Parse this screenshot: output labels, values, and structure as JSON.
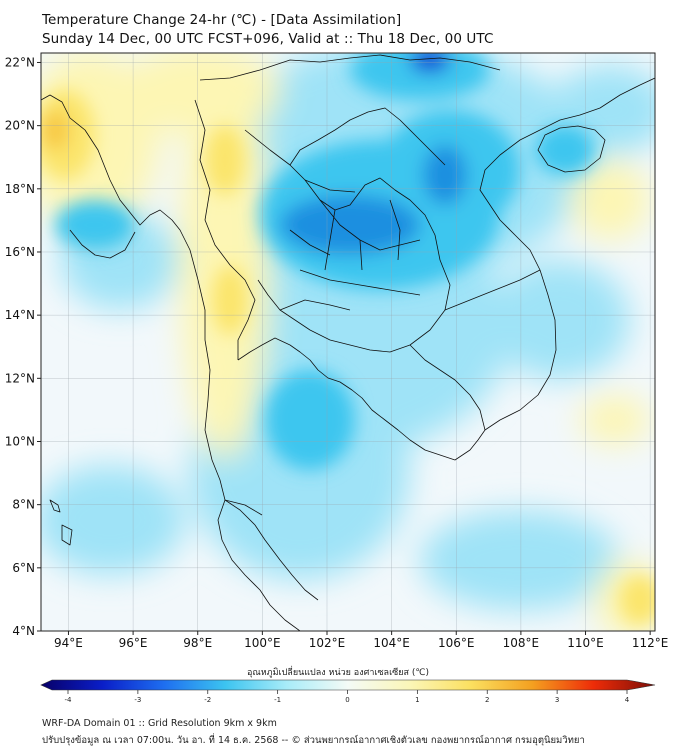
{
  "header": {
    "title_line1": "Temperature Change 24-hr (℃) - [Data Assimilation]",
    "title_line2": "Sunday 14 Dec, 00 UTC FCST+096, Valid at :: Thu 18 Dec, 00 UTC"
  },
  "map": {
    "lat_labels": [
      "22°N",
      "20°N",
      "18°N",
      "16°N",
      "14°N",
      "12°N",
      "10°N",
      "8°N",
      "6°N",
      "4°N"
    ],
    "lon_labels": [
      "94°E",
      "96°E",
      "98°E",
      "100°E",
      "102°E",
      "104°E",
      "106°E",
      "108°E",
      "110°E",
      "112°E"
    ],
    "lat_values": [
      22,
      20,
      18,
      16,
      14,
      12,
      10,
      8,
      6,
      4
    ],
    "lon_values": [
      94,
      96,
      98,
      100,
      102,
      104,
      106,
      108,
      110,
      112
    ],
    "colors": {
      "neutral": "#f2f8fb",
      "cool_light": "#9fe3f7",
      "cool": "#3ec6ef",
      "cool_strong": "#1f8fe0",
      "cool_deep": "#0b3fd6",
      "warm_light": "#fdf6b4",
      "warm": "#fbe56c",
      "warm_strong": "#f7c843"
    }
  },
  "colorbar": {
    "title": "อุณหภูมิเปลี่ยนแปลง หน่วย องศาเซลเซียส (℃)",
    "ticks": [
      "-4",
      "-3",
      "-2",
      "-1",
      "0",
      "1",
      "2",
      "3",
      "4"
    ],
    "tick_values": [
      -4,
      -3,
      -2,
      -1,
      0,
      1,
      2,
      3,
      4
    ],
    "colors": [
      "#080068",
      "#0a1ec8",
      "#1e6ef0",
      "#3cc4f0",
      "#a8ecf8",
      "#f4fbf6",
      "#fbf6b8",
      "#fbe060",
      "#f4a020",
      "#ee2c08",
      "#7a0e08"
    ]
  },
  "footer": {
    "line1": "WRF-DA Domain 01 :: Grid Resolution 9km x 9km",
    "line2": "ปรับปรุงข้อมูล ณ เวลา 07:00น. วัน อา. ที่ 14 ธ.ค. 2568 -- © ส่วนพยากรณ์อากาศเชิงตัวเลข กองพยากรณ์อากาศ กรมอุตุนิยมวิทยา"
  }
}
